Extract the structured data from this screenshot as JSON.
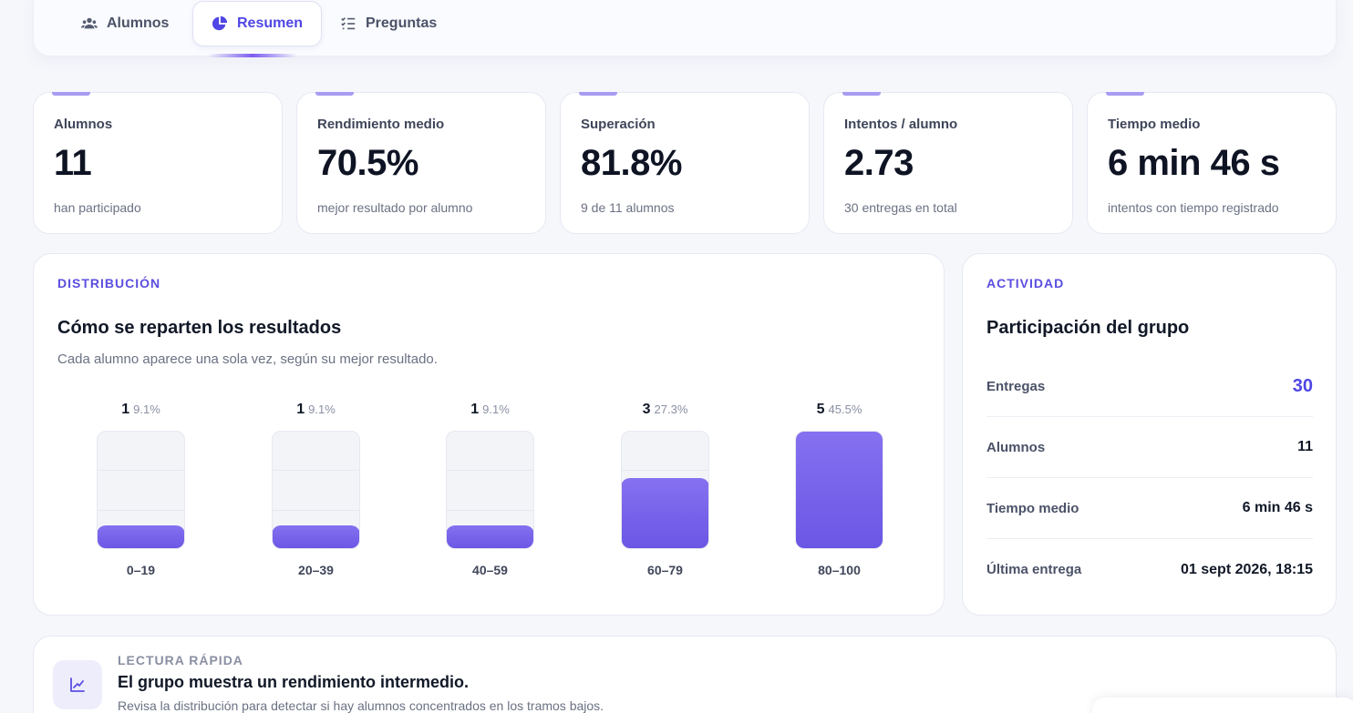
{
  "tabs": [
    {
      "label": "Alumnos",
      "icon": "users-icon"
    },
    {
      "label": "Resumen",
      "icon": "pie-chart-icon",
      "active": true
    },
    {
      "label": "Preguntas",
      "icon": "list-check-icon"
    }
  ],
  "stats": [
    {
      "label": "Alumnos",
      "value": "11",
      "sub": "han participado"
    },
    {
      "label": "Rendimiento medio",
      "value": "70.5%",
      "sub": "mejor resultado por alumno"
    },
    {
      "label": "Superación",
      "value": "81.8%",
      "sub": "9 de 11 alumnos"
    },
    {
      "label": "Intentos / alumno",
      "value": "2.73",
      "sub": "30 entregas en total"
    },
    {
      "label": "Tiempo medio",
      "value": "6 min 46 s",
      "sub": "intentos con tiempo registrado"
    }
  ],
  "distribution": {
    "kicker": "DISTRIBUCIÓN",
    "title": "Cómo se reparten los resultados",
    "description": "Cada alumno aparece una sola vez, según su mejor resultado."
  },
  "chart_data": {
    "type": "bar",
    "categories": [
      "0–19",
      "20–39",
      "40–59",
      "60–79",
      "80–100"
    ],
    "values": [
      1,
      1,
      1,
      3,
      5
    ],
    "percent_labels": [
      "9.1%",
      "9.1%",
      "9.1%",
      "27.3%",
      "45.5%"
    ],
    "ylim": [
      0,
      5
    ],
    "grid": true
  },
  "activity": {
    "kicker": "ACTIVIDAD",
    "title": "Participación del grupo",
    "rows": [
      {
        "key": "Entregas",
        "value": "30"
      },
      {
        "key": "Alumnos",
        "value": "11"
      },
      {
        "key": "Tiempo medio",
        "value": "6 min 46 s"
      },
      {
        "key": "Última entrega",
        "value": "01 sept 2026, 18:15"
      }
    ]
  },
  "quick_read": {
    "kicker": "LECTURA RÁPIDA",
    "title": "El grupo muestra un rendimiento intermedio.",
    "description": "Revisa la distribución para detectar si hay alumnos concentrados en los tramos bajos.",
    "icon": "trend-chart-icon"
  },
  "colors": {
    "accent": "#4f46e5",
    "bar": "#7360ea",
    "accent_soft": "#a79cf2"
  }
}
